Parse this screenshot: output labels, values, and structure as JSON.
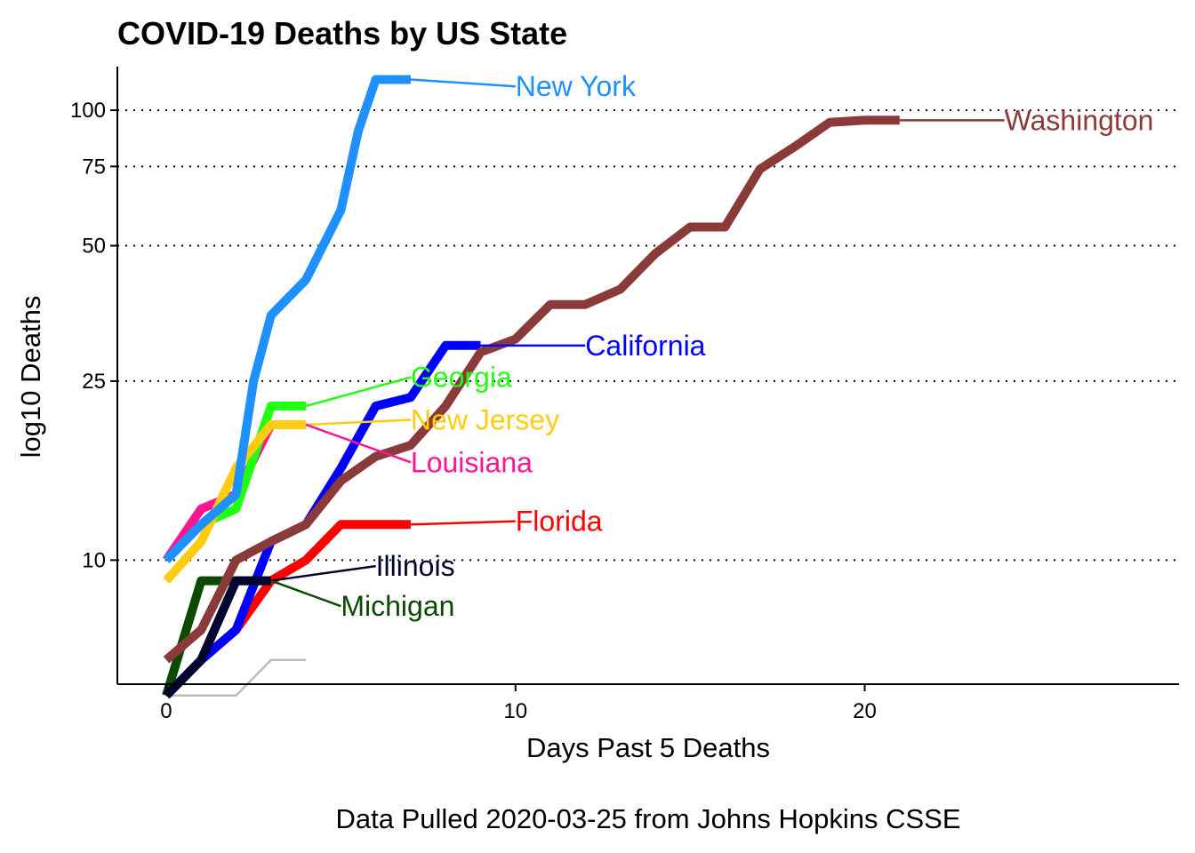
{
  "chart_data": {
    "type": "line",
    "title": "COVID-19 Deaths by US State",
    "xlabel": "Days Past 5 Deaths",
    "ylabel": "log10 Deaths",
    "caption": "Data Pulled 2020-03-25 from Johns Hopkins CSSE",
    "y_scale": "log10",
    "xlim": [
      -1.4,
      29
    ],
    "ylim": [
      5.3,
      125
    ],
    "x_ticks": [
      0,
      10,
      20
    ],
    "y_ticks": [
      10,
      25,
      50,
      75,
      100
    ],
    "grid": "horizontal dotted at y ticks",
    "legend": "none (direct line labels)",
    "series": [
      {
        "name": "",
        "color": "#bbbbbb",
        "label_shown": false,
        "x": [
          0,
          1,
          2,
          3,
          4
        ],
        "y": [
          5,
          5,
          5,
          6,
          6
        ]
      },
      {
        "name": "Louisiana",
        "color": "#ff1493",
        "x": [
          0,
          1,
          2,
          3,
          4
        ],
        "y": [
          10,
          13,
          14,
          20,
          20
        ]
      },
      {
        "name": "Georgia",
        "color": "#22ff11",
        "x": [
          0,
          1,
          2,
          3,
          4
        ],
        "y": [
          10,
          12,
          13,
          22,
          22
        ]
      },
      {
        "name": "New Jersey",
        "color": "#ffcc11",
        "x": [
          0,
          1,
          2,
          3,
          4
        ],
        "y": [
          9,
          11,
          16,
          20,
          20
        ]
      },
      {
        "name": "Florida",
        "color": "#ff0000",
        "x": [
          0,
          1,
          2,
          3,
          4,
          5,
          6,
          7
        ],
        "y": [
          5,
          6,
          7,
          9,
          10,
          12,
          12,
          12
        ]
      },
      {
        "name": "California",
        "color": "#0000ff",
        "x": [
          0,
          1,
          2,
          3,
          4,
          5,
          6,
          7,
          8,
          9
        ],
        "y": [
          5,
          6,
          7,
          11,
          12,
          16,
          22,
          23,
          30,
          30
        ]
      },
      {
        "name": "Michigan",
        "color": "#0b4a00",
        "x": [
          0,
          1,
          2,
          3
        ],
        "y": [
          5,
          9,
          9,
          9
        ]
      },
      {
        "name": "Illinois",
        "color": "#02052e",
        "x": [
          0,
          1,
          2,
          3
        ],
        "y": [
          5,
          6,
          9,
          9
        ]
      },
      {
        "name": "New York",
        "color": "#1e90ff",
        "x": [
          0,
          1,
          2,
          2.5,
          3,
          4,
          5,
          5.5,
          6,
          7
        ],
        "y": [
          10,
          12,
          14,
          25,
          35,
          42,
          60,
          90,
          117,
          117
        ]
      },
      {
        "name": "Washington",
        "color": "#8b3a3a",
        "x": [
          0,
          1,
          2,
          3,
          4,
          5,
          6,
          7,
          8,
          9,
          10,
          11,
          12,
          13,
          14,
          15,
          16,
          17,
          18,
          19,
          20,
          21
        ],
        "y": [
          6,
          7,
          10,
          11,
          12,
          15,
          17,
          18,
          22,
          29,
          31,
          37,
          37,
          40,
          48,
          55,
          55,
          74,
          83,
          94,
          95,
          95
        ]
      }
    ],
    "labels": [
      {
        "series": "New York",
        "text": "New York",
        "x": 10,
        "y": 113
      },
      {
        "series": "Washington",
        "text": "Washington",
        "x": 24,
        "y": 95
      },
      {
        "series": "California",
        "text": "California",
        "x": 12,
        "y": 30
      },
      {
        "series": "Georgia",
        "text": "Georgia",
        "x": 7,
        "y": 25.5
      },
      {
        "series": "New Jersey",
        "text": "New Jersey",
        "x": 7,
        "y": 20.5
      },
      {
        "series": "Louisiana",
        "text": "Louisiana",
        "x": 7,
        "y": 16.5
      },
      {
        "series": "Florida",
        "text": "Florida",
        "x": 10,
        "y": 12.2
      },
      {
        "series": "Illinois",
        "text": "Illinois",
        "x": 6,
        "y": 9.7
      },
      {
        "series": "Michigan",
        "text": "Michigan",
        "x": 5,
        "y": 7.9
      }
    ]
  }
}
